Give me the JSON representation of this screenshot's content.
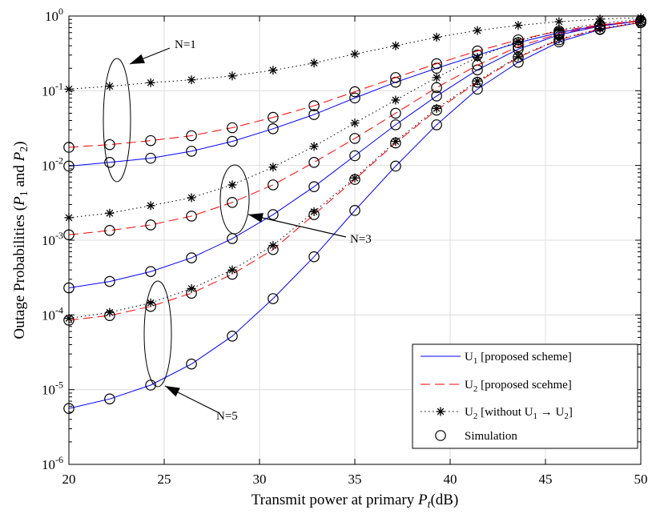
{
  "chart_data": {
    "type": "line",
    "xlabel": "Transmit power at primary P_t(dB)",
    "ylabel": "Outage Probabilities (P_1 and P_2)",
    "xlim": [
      20,
      50
    ],
    "ylim": [
      1e-06,
      1
    ],
    "yscale": "log",
    "grid": true,
    "legend_placement": "bottom-right",
    "x_ticks": [
      20,
      25,
      30,
      35,
      40,
      45,
      50
    ],
    "y_ticks": [
      1e-06,
      1e-05,
      0.0001,
      0.001,
      0.01,
      0.1,
      1
    ],
    "x_tick_labels": [
      "20",
      "25",
      "30",
      "35",
      "40",
      "45",
      "50"
    ],
    "y_tick_labels": [
      {
        "base": "10",
        "exp": "-6"
      },
      {
        "base": "10",
        "exp": "-5"
      },
      {
        "base": "10",
        "exp": "-4"
      },
      {
        "base": "10",
        "exp": "-3"
      },
      {
        "base": "10",
        "exp": "-2"
      },
      {
        "base": "10",
        "exp": "-1"
      },
      {
        "base": "10",
        "exp": "0"
      }
    ],
    "x": [
      20,
      22.14,
      24.29,
      26.43,
      28.57,
      30.71,
      32.86,
      35,
      37.14,
      39.29,
      41.43,
      43.57,
      45.71,
      47.86,
      50
    ],
    "series": [
      {
        "name": "U1 [proposed scheme]",
        "group": "N=1",
        "style": "solid-blue",
        "values": [
          0.0098,
          0.011,
          0.0125,
          0.0155,
          0.021,
          0.031,
          0.048,
          0.08,
          0.13,
          0.2,
          0.3,
          0.44,
          0.6,
          0.75,
          0.86
        ]
      },
      {
        "name": "U2 [proposed scehme]",
        "group": "N=1",
        "style": "dashed-red",
        "values": [
          0.0175,
          0.019,
          0.0215,
          0.025,
          0.032,
          0.044,
          0.063,
          0.097,
          0.15,
          0.23,
          0.34,
          0.48,
          0.63,
          0.76,
          0.87
        ]
      },
      {
        "name": "U2 [without U1 -> U2]",
        "group": "N=1",
        "style": "dotted-star",
        "values": [
          0.105,
          0.115,
          0.128,
          0.14,
          0.158,
          0.188,
          0.235,
          0.31,
          0.4,
          0.52,
          0.64,
          0.75,
          0.84,
          0.91,
          0.95
        ]
      },
      {
        "name": "U1 [proposed scheme]",
        "group": "N=3",
        "style": "solid-blue",
        "values": [
          0.00023,
          0.00028,
          0.00038,
          0.00058,
          0.00105,
          0.0022,
          0.0052,
          0.0135,
          0.035,
          0.085,
          0.19,
          0.36,
          0.56,
          0.73,
          0.86
        ]
      },
      {
        "name": "U2 [proposed scehme]",
        "group": "N=3",
        "style": "dashed-red",
        "values": [
          0.00118,
          0.00135,
          0.0016,
          0.0021,
          0.0032,
          0.0055,
          0.011,
          0.023,
          0.05,
          0.11,
          0.22,
          0.39,
          0.58,
          0.74,
          0.86
        ]
      },
      {
        "name": "U2 [without U1 -> U2]",
        "group": "N=3",
        "style": "dotted-star",
        "values": [
          0.002,
          0.0023,
          0.0029,
          0.0037,
          0.0055,
          0.0095,
          0.018,
          0.037,
          0.075,
          0.15,
          0.28,
          0.46,
          0.65,
          0.8,
          0.9
        ]
      },
      {
        "name": "U1 [proposed scheme]",
        "group": "N=5",
        "style": "solid-blue",
        "values": [
          5.6e-06,
          7.5e-06,
          1.15e-05,
          2.2e-05,
          5.2e-05,
          0.000165,
          0.0006,
          0.0025,
          0.0098,
          0.035,
          0.105,
          0.24,
          0.45,
          0.66,
          0.82
        ]
      },
      {
        "name": "U2 [proposed scehme]",
        "group": "N=5",
        "style": "dashed-red",
        "values": [
          8.5e-05,
          9.8e-05,
          0.00013,
          0.000195,
          0.00035,
          0.00075,
          0.0022,
          0.0065,
          0.02,
          0.055,
          0.13,
          0.28,
          0.48,
          0.67,
          0.82
        ]
      },
      {
        "name": "U2 [without U1 -> U2]",
        "group": "N=5",
        "style": "dotted-star",
        "values": [
          9e-05,
          0.000108,
          0.000145,
          0.000225,
          0.0004,
          0.00085,
          0.0024,
          0.0068,
          0.021,
          0.058,
          0.135,
          0.285,
          0.49,
          0.68,
          0.83
        ]
      }
    ],
    "simulation": {
      "name": "Simulation",
      "marker": "circle"
    },
    "legend": [
      {
        "key": "u1",
        "base": "U",
        "sub": "1",
        "rest": " [proposed scheme]"
      },
      {
        "key": "u2",
        "base": "U",
        "sub": "2",
        "rest": " [proposed scehme]"
      },
      {
        "key": "u2w",
        "base": "U",
        "sub": "2",
        "mid": " [without U",
        "sub2": "1",
        "rest": " → U",
        "sub3": "2",
        "tail": "]"
      },
      {
        "key": "sim",
        "text": "Simulation"
      }
    ],
    "annotations": [
      {
        "text": "N=1"
      },
      {
        "text": "N=3"
      },
      {
        "text": "N=5"
      }
    ],
    "colors": {
      "u1": "#0000ff",
      "u2": "#ff0000",
      "u2w": "#000000",
      "grid": "#dddddd"
    }
  }
}
